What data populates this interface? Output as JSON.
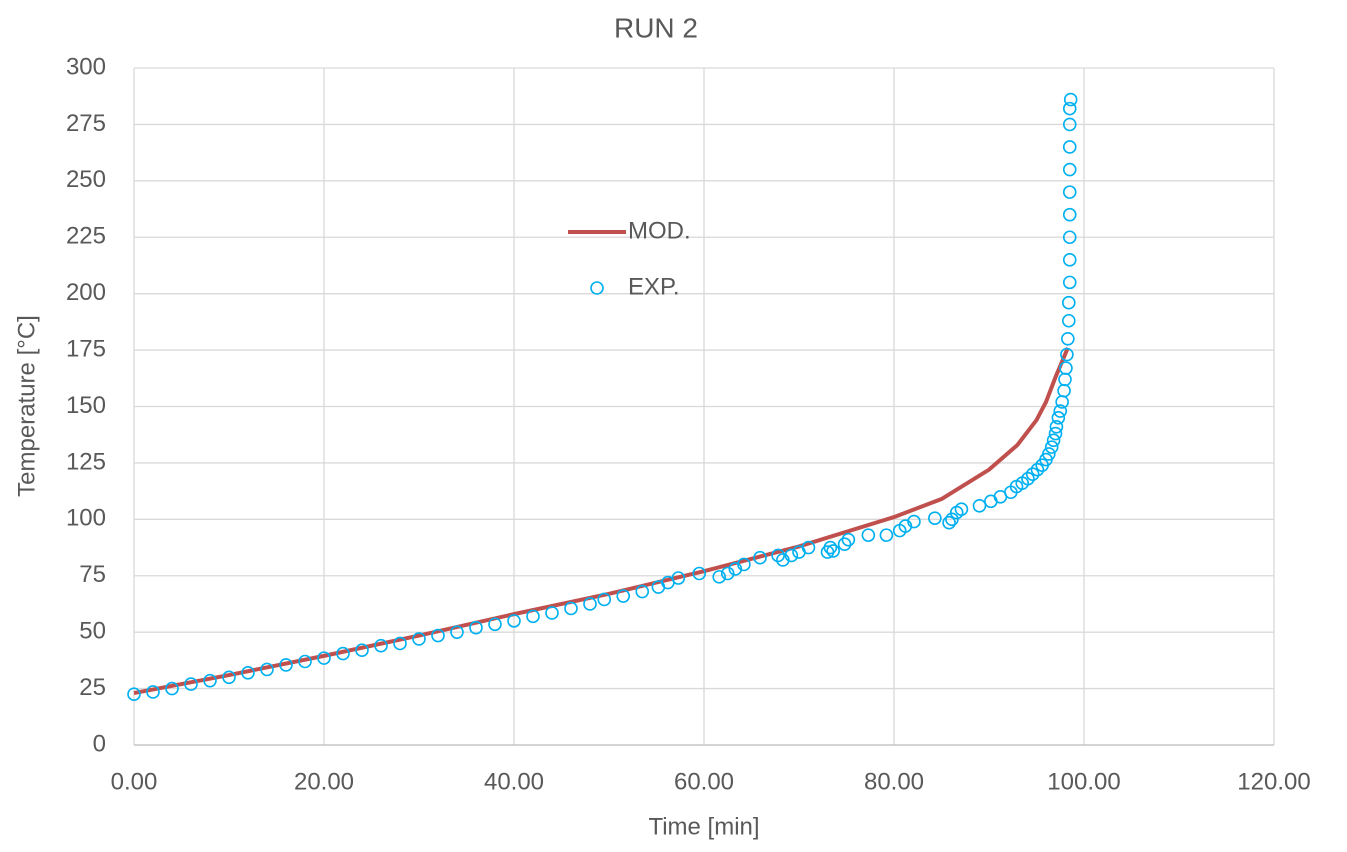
{
  "chart_data": {
    "type": "scatter",
    "title": "RUN 2",
    "x_label": "Time [min]",
    "y_label": "Temperature [°C]",
    "xlim": [
      0,
      120
    ],
    "ylim": [
      0,
      300
    ],
    "xticks": [
      {
        "value": 0,
        "label": "0.00"
      },
      {
        "value": 20,
        "label": "20.00"
      },
      {
        "value": 40,
        "label": "40.00"
      },
      {
        "value": 60,
        "label": "60.00"
      },
      {
        "value": 80,
        "label": "80.00"
      },
      {
        "value": 100,
        "label": "100.00"
      },
      {
        "value": 120,
        "label": "120.00"
      }
    ],
    "yticks": [
      0,
      25,
      50,
      75,
      100,
      125,
      150,
      175,
      200,
      225,
      250,
      275,
      300
    ],
    "grid": true,
    "series": [
      {
        "name": "MOD.",
        "color": "#c0504d",
        "style": "line",
        "x": [
          0,
          10,
          20,
          30,
          40,
          50,
          60,
          70,
          80,
          85,
          90,
          93,
          95,
          96,
          97,
          97.8,
          98.3
        ],
        "values": [
          23,
          31,
          39.5,
          48.5,
          58,
          67,
          77,
          88,
          101,
          109,
          122,
          133,
          144,
          152,
          163,
          171,
          176
        ]
      },
      {
        "name": "EXP.",
        "color": "#00b0f0",
        "style": "markers",
        "x": [
          0,
          2,
          4,
          6,
          8,
          10,
          12,
          14,
          16,
          18,
          20,
          22,
          24,
          26,
          28,
          30,
          32,
          34,
          36,
          38,
          40,
          42,
          44,
          46,
          48,
          49.5,
          51.5,
          53.5,
          55.2,
          56.2,
          57.3,
          59.5,
          61.6,
          62.5,
          63.3,
          64.2,
          65.9,
          67.8,
          68.3,
          69.2,
          70,
          71,
          73,
          73.3,
          73.6,
          74.8,
          75.2,
          77.3,
          79.2,
          80.6,
          81.2,
          82.1,
          84.3,
          85.8,
          86.1,
          86.6,
          87.1,
          89,
          90.2,
          91.2,
          92.3,
          92.9,
          93.5,
          94.1,
          94.6,
          95.1,
          95.6,
          96,
          96.3,
          96.6,
          96.8,
          97,
          97.1,
          97.3,
          97.5,
          97.7,
          97.9,
          98,
          98.1,
          98.2,
          98.3,
          98.4,
          98.4,
          98.5,
          98.5,
          98.5,
          98.5,
          98.5,
          98.5,
          98.5,
          98.5,
          98.5,
          98.6
        ],
        "values": [
          22.5,
          23.5,
          25,
          27,
          28.5,
          30,
          32,
          33.5,
          35.5,
          37,
          38.5,
          40.5,
          42,
          44,
          45,
          47,
          48.5,
          50,
          52,
          53.5,
          55,
          57,
          58.5,
          60.5,
          62.5,
          64.5,
          66,
          68,
          70,
          72,
          74,
          76,
          74.5,
          76,
          78,
          80,
          83,
          84,
          82,
          84,
          85.5,
          87.5,
          85.5,
          87.5,
          86,
          89,
          91,
          93,
          93,
          95,
          97,
          99,
          100.5,
          98.5,
          100,
          103,
          104.5,
          106,
          108,
          110,
          112,
          114.5,
          116,
          118,
          120,
          122,
          124,
          126.5,
          129,
          132,
          135,
          138,
          141,
          145,
          148,
          152,
          157,
          162,
          167,
          173,
          180,
          188,
          196,
          205,
          215,
          225,
          235,
          245,
          255,
          265,
          275,
          282,
          286
        ]
      }
    ]
  }
}
